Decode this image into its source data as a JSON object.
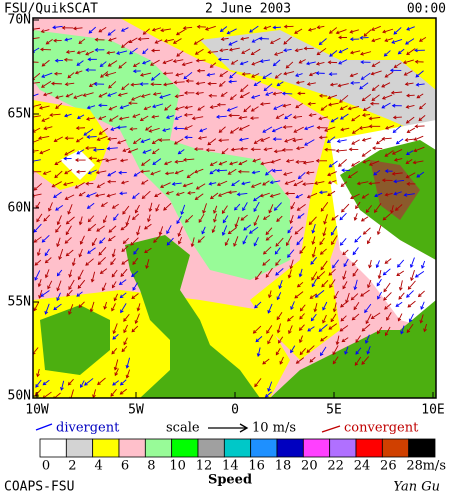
{
  "header": {
    "source": "FSU/QuikSCAT",
    "date": "2 June 2003",
    "time": "00:00"
  },
  "map": {
    "lat_labels": [
      "70N",
      "65N",
      "60N",
      "55N",
      "50N"
    ],
    "lon_labels": [
      "10W",
      "5W",
      "0",
      "5E",
      "10E"
    ]
  },
  "legend": {
    "divergent": "divergent",
    "scale": "scale",
    "scale_value": "10 m/s",
    "convergent": "convergent"
  },
  "colorbar": {
    "labels": [
      "0",
      "2",
      "4",
      "6",
      "8",
      "10",
      "12",
      "14",
      "16",
      "18",
      "20",
      "22",
      "24",
      "26",
      "28"
    ],
    "unit": "m/s",
    "title": "Speed",
    "colors": [
      "#ffffff",
      "#d3d3d3",
      "#ffff00",
      "#ffc0cb",
      "#98fb98",
      "#00ff00",
      "#a0a0a0",
      "#00c8c8",
      "#1e90ff",
      "#0000c0",
      "#ff40ff",
      "#b070ff",
      "#ff0000",
      "#d04000",
      "#000000"
    ]
  },
  "footer": {
    "credit": "COAPS-FSU",
    "signature": "Yan Gu"
  }
}
